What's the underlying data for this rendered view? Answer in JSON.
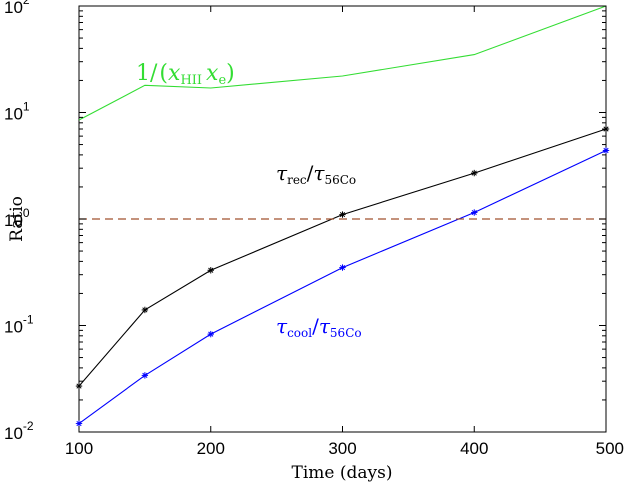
{
  "chart_data": {
    "type": "line",
    "xlabel": "Time (days)",
    "ylabel": "Ratio",
    "xlim": [
      100,
      500
    ],
    "ylim": [
      0.01,
      100
    ],
    "yscale": "log",
    "xticks": [
      100,
      200,
      300,
      400,
      500
    ],
    "xtick_labels": [
      "100",
      "200",
      "300",
      "400",
      "500"
    ],
    "yticks": [
      0.01,
      0.1,
      1,
      10,
      100
    ],
    "ytick_labels": [
      {
        "base": "10",
        "exp": "-2"
      },
      {
        "base": "10",
        "exp": "-1"
      },
      {
        "base": "10",
        "exp": "0"
      },
      {
        "base": "10",
        "exp": "1"
      },
      {
        "base": "10",
        "exp": "2"
      }
    ],
    "grid": false,
    "series": [
      {
        "name": "1/(x_HII x_e)",
        "color": "#33dd33",
        "markers": false,
        "x": [
          100,
          150,
          200,
          300,
          400,
          500
        ],
        "y": [
          8.5,
          18.0,
          17.0,
          22.0,
          35.0,
          100.0
        ]
      },
      {
        "name": "τ_rec/τ_56Co",
        "color": "#000000",
        "markers": true,
        "x": [
          100,
          150,
          200,
          300,
          400,
          500
        ],
        "y": [
          0.027,
          0.14,
          0.33,
          1.1,
          2.7,
          7.0
        ]
      },
      {
        "name": "τ_cool/τ_56Co",
        "color": "#0000ff",
        "markers": true,
        "x": [
          100,
          150,
          200,
          300,
          400,
          500
        ],
        "y": [
          0.012,
          0.034,
          0.083,
          0.35,
          1.15,
          4.4
        ]
      },
      {
        "name": "",
        "color": "#a0522d",
        "dashed": true,
        "markers": false,
        "x": [
          100,
          500
        ],
        "y": [
          1.0,
          1.0
        ]
      }
    ],
    "annotations": [
      {
        "series": 0,
        "main": "1/",
        "parts": [
          "(",
          "x",
          "HII",
          " x",
          "e",
          ")"
        ],
        "color": "#33dd33"
      },
      {
        "series": 1,
        "tau1": "rec",
        "tau2": "56Co",
        "color": "#000000"
      },
      {
        "series": 2,
        "tau1": "cool",
        "tau2": "56Co",
        "color": "#0000ff"
      }
    ]
  }
}
